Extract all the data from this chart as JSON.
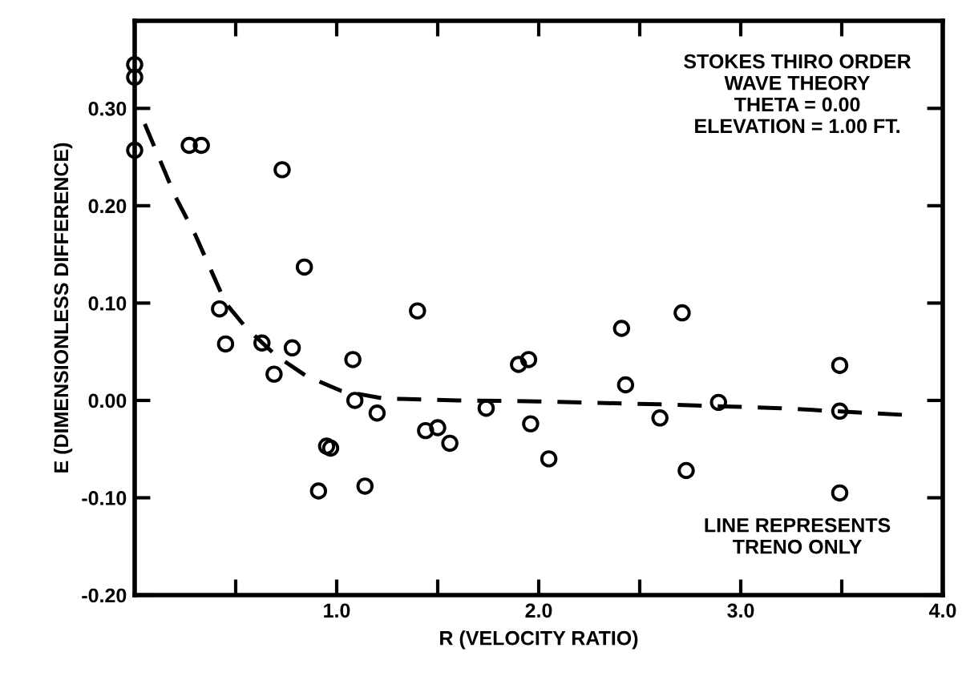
{
  "chart_data": {
    "type": "scatter",
    "xlabel": "R (VELOCITY RATIO)",
    "ylabel": "E (DIMENSIONLESS DIFFERENCE)",
    "annotations": [
      "STOKES THIRO ORDER\nWAVE THEORY\nTHETA = 0.00\nELEVATION = 1.00 FT.",
      "LINE REPRESENTS\nTRENO ONLY"
    ],
    "xlim": [
      0,
      4.0
    ],
    "ylim": [
      -0.2,
      0.39
    ],
    "xticks": [
      {
        "value": 0.5,
        "label": null
      },
      {
        "value": 1.0,
        "label": "1.0"
      },
      {
        "value": 1.5,
        "label": null
      },
      {
        "value": 2.0,
        "label": "2.0"
      },
      {
        "value": 2.5,
        "label": null
      },
      {
        "value": 3.0,
        "label": "3.0"
      },
      {
        "value": 3.5,
        "label": null
      },
      {
        "value": 4.0,
        "label": "4.0"
      }
    ],
    "yticks": [
      {
        "value": -0.2,
        "label": "-0.20"
      },
      {
        "value": -0.1,
        "label": "-0.10"
      },
      {
        "value": 0.0,
        "label": "0.00"
      },
      {
        "value": 0.1,
        "label": "0.10"
      },
      {
        "value": 0.2,
        "label": "0.20"
      },
      {
        "value": 0.3,
        "label": "0.30"
      }
    ],
    "grid": false,
    "legend": false,
    "series": [
      {
        "color": "#000000",
        "marker": "circle",
        "x": [
          0,
          0,
          0,
          0.27,
          0.33,
          0.73,
          0.84,
          0.42,
          1.4,
          0.45,
          0.63,
          0.78,
          0.69,
          1.08,
          1.09,
          1.2,
          0.95,
          0.97,
          0.91,
          1.14,
          1.44,
          1.5,
          1.56,
          1.74,
          1.9,
          1.95,
          1.96,
          2.05,
          2.41,
          2.43,
          2.6,
          2.73,
          2.89,
          3.49,
          3.49,
          3.49,
          2.71
        ],
        "values": [
          0.345,
          0.332,
          0.257,
          0.262,
          0.262,
          0.237,
          0.137,
          0.094,
          0.092,
          0.058,
          0.059,
          0.054,
          0.027,
          0.042,
          0.0,
          -0.013,
          -0.047,
          -0.049,
          -0.093,
          -0.088,
          -0.031,
          -0.028,
          -0.044,
          -0.008,
          0.037,
          0.042,
          -0.024,
          -0.06,
          0.074,
          0.016,
          -0.018,
          -0.072,
          -0.002,
          0.036,
          -0.011,
          -0.095,
          0.09
        ]
      },
      {
        "type": "line",
        "color": "#000000",
        "line_style": "dashed",
        "x": [
          0.05,
          0.2,
          0.3,
          0.45,
          0.55,
          0.7,
          0.85,
          1.02,
          1.23,
          1.6,
          2.0,
          2.6,
          3.2,
          3.82
        ],
        "values": [
          0.284,
          0.21,
          0.17,
          0.1,
          0.075,
          0.046,
          0.025,
          0.01,
          0.002,
          0.0,
          -0.001,
          -0.004,
          -0.008,
          -0.015
        ]
      }
    ]
  }
}
